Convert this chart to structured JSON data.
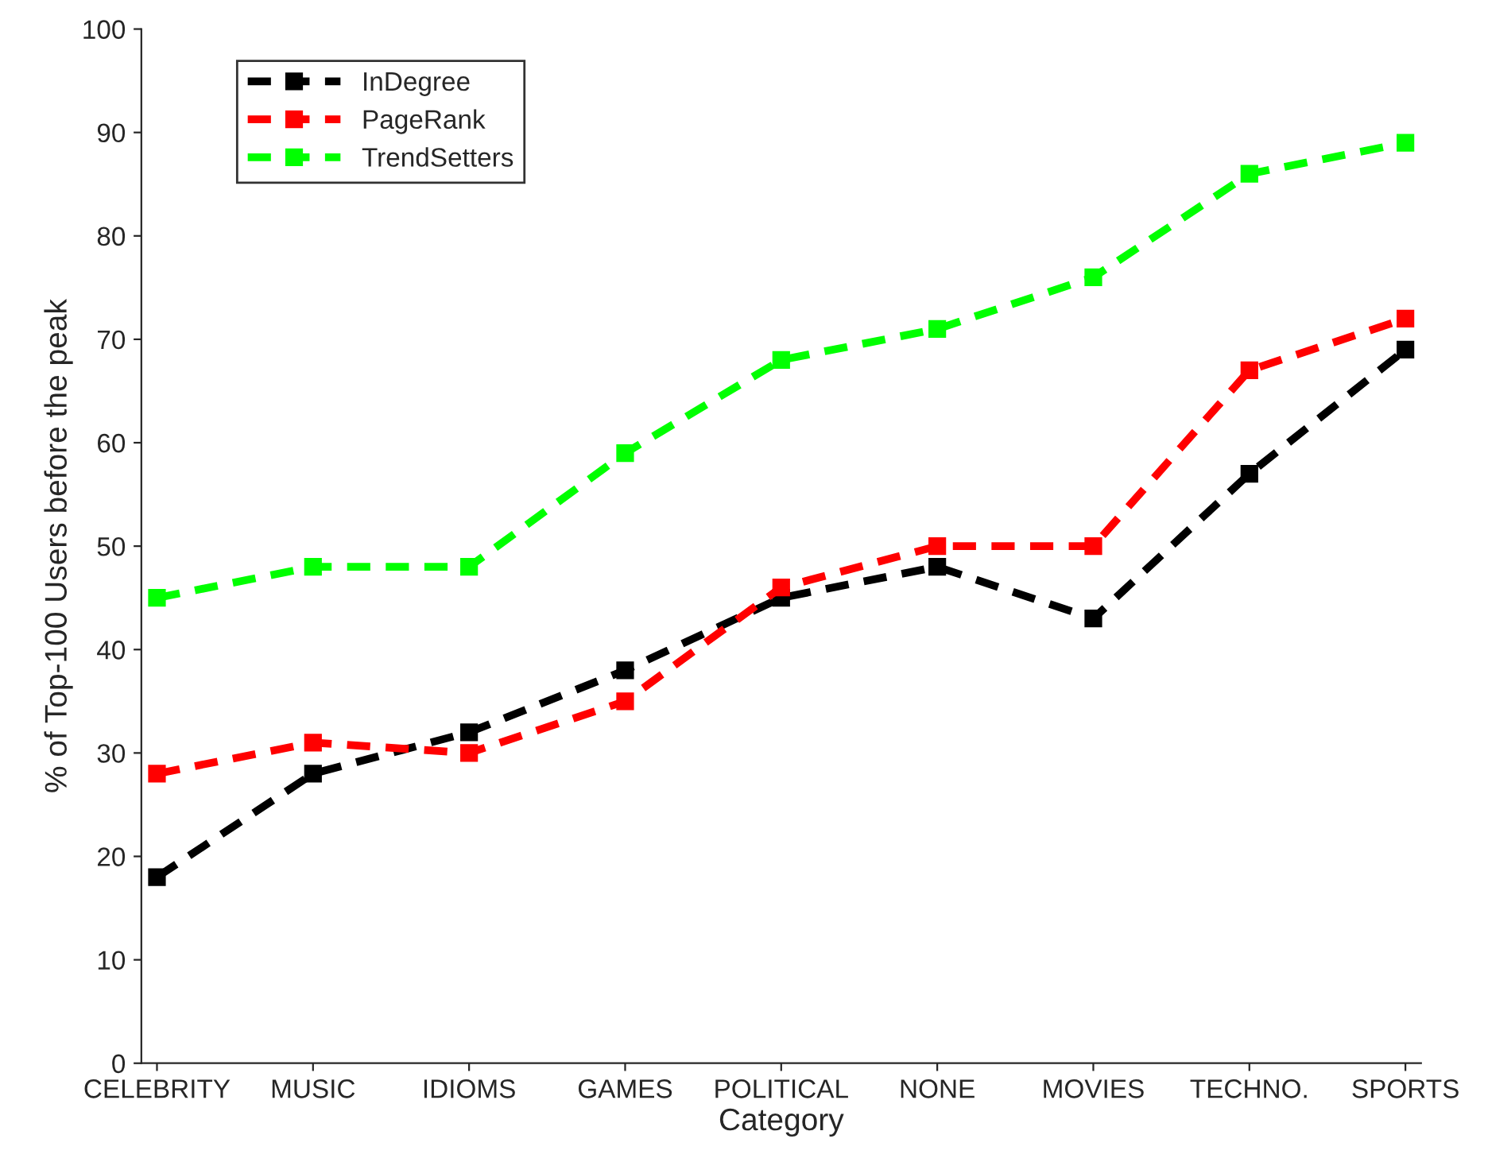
{
  "chart_data": {
    "type": "line",
    "xlabel": "Category",
    "ylabel": "% of Top-100 Users before the peak",
    "categories": [
      "CELEBRITY",
      "MUSIC",
      "IDIOMS",
      "GAMES",
      "POLITICAL",
      "NONE",
      "MOVIES",
      "TECHNO.",
      "SPORTS"
    ],
    "series": [
      {
        "name": "InDegree",
        "color": "#000000",
        "values": [
          18,
          28,
          32,
          38,
          45,
          48,
          43,
          57,
          69
        ]
      },
      {
        "name": "PageRank",
        "color": "#ff0000",
        "values": [
          28,
          31,
          30,
          35,
          46,
          50,
          50,
          67,
          72
        ]
      },
      {
        "name": "TrendSetters",
        "color": "#00ff00",
        "values": [
          45,
          48,
          48,
          59,
          68,
          71,
          76,
          86,
          89
        ]
      }
    ],
    "ylim": [
      0,
      100
    ],
    "yticks": [
      0,
      10,
      20,
      30,
      40,
      50,
      60,
      70,
      80,
      90,
      100
    ],
    "grid": false,
    "legend": "top left",
    "marker": "square",
    "line_style": "dashed"
  }
}
